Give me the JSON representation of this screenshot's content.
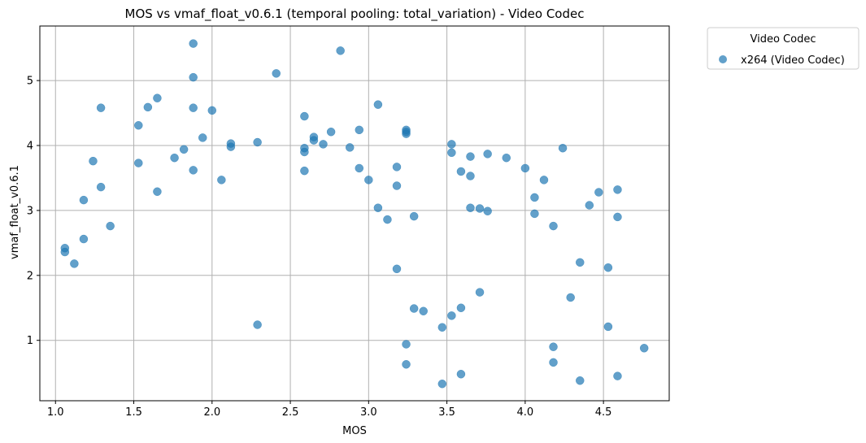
{
  "chart_data": {
    "type": "scatter",
    "title": "MOS vs vmaf_float_v0.6.1 (temporal pooling: total_variation) - Video Codec",
    "xlabel": "MOS",
    "ylabel": "vmaf_float_v0.6.1",
    "xlim": [
      0.9,
      4.92
    ],
    "ylim": [
      0.07,
      5.84
    ],
    "xticks": [
      1.0,
      1.5,
      2.0,
      2.5,
      3.0,
      3.5,
      4.0,
      4.5
    ],
    "xtick_labels": [
      "1.0",
      "1.5",
      "2.0",
      "2.5",
      "3.0",
      "3.5",
      "4.0",
      "4.5"
    ],
    "yticks": [
      1,
      2,
      3,
      4,
      5
    ],
    "ytick_labels": [
      "1",
      "2",
      "3",
      "4",
      "5"
    ],
    "grid": true,
    "legend": {
      "title": "Video Codec",
      "placement": "outside-top-right"
    },
    "series": [
      {
        "name": "x264 (Video Codec)",
        "color": "#1f77b4",
        "points": [
          [
            1.06,
            2.42
          ],
          [
            1.06,
            2.36
          ],
          [
            1.12,
            2.18
          ],
          [
            1.18,
            2.56
          ],
          [
            1.18,
            3.16
          ],
          [
            1.24,
            3.76
          ],
          [
            1.29,
            3.36
          ],
          [
            1.29,
            4.58
          ],
          [
            1.35,
            2.76
          ],
          [
            1.53,
            4.31
          ],
          [
            1.53,
            3.73
          ],
          [
            1.59,
            4.59
          ],
          [
            1.65,
            4.73
          ],
          [
            1.65,
            3.29
          ],
          [
            1.76,
            3.81
          ],
          [
            1.82,
            3.94
          ],
          [
            1.88,
            5.57
          ],
          [
            1.88,
            5.05
          ],
          [
            1.88,
            4.58
          ],
          [
            1.88,
            3.62
          ],
          [
            1.94,
            4.12
          ],
          [
            2.0,
            4.54
          ],
          [
            2.06,
            3.47
          ],
          [
            2.12,
            4.03
          ],
          [
            2.12,
            3.98
          ],
          [
            2.29,
            4.05
          ],
          [
            2.29,
            1.24
          ],
          [
            2.41,
            5.11
          ],
          [
            2.59,
            4.45
          ],
          [
            2.59,
            3.96
          ],
          [
            2.59,
            3.9
          ],
          [
            2.59,
            3.61
          ],
          [
            2.65,
            4.13
          ],
          [
            2.65,
            4.08
          ],
          [
            2.71,
            4.02
          ],
          [
            2.76,
            4.21
          ],
          [
            2.82,
            5.46
          ],
          [
            2.88,
            3.97
          ],
          [
            2.94,
            4.24
          ],
          [
            2.94,
            3.65
          ],
          [
            3.0,
            3.47
          ],
          [
            3.06,
            4.63
          ],
          [
            3.06,
            3.04
          ],
          [
            3.12,
            2.86
          ],
          [
            3.18,
            3.67
          ],
          [
            3.18,
            3.38
          ],
          [
            3.18,
            2.1
          ],
          [
            3.24,
            4.24
          ],
          [
            3.24,
            4.21
          ],
          [
            3.24,
            4.18
          ],
          [
            3.24,
            0.94
          ],
          [
            3.24,
            0.63
          ],
          [
            3.29,
            2.91
          ],
          [
            3.29,
            1.49
          ],
          [
            3.35,
            1.45
          ],
          [
            3.47,
            1.2
          ],
          [
            3.47,
            0.33
          ],
          [
            3.53,
            4.02
          ],
          [
            3.53,
            3.89
          ],
          [
            3.53,
            1.38
          ],
          [
            3.59,
            3.6
          ],
          [
            3.59,
            1.5
          ],
          [
            3.59,
            0.48
          ],
          [
            3.65,
            3.83
          ],
          [
            3.65,
            3.53
          ],
          [
            3.65,
            3.04
          ],
          [
            3.71,
            3.03
          ],
          [
            3.71,
            1.74
          ],
          [
            3.76,
            3.87
          ],
          [
            3.76,
            2.99
          ],
          [
            3.88,
            3.81
          ],
          [
            4.0,
            3.65
          ],
          [
            4.06,
            3.2
          ],
          [
            4.06,
            2.95
          ],
          [
            4.12,
            3.47
          ],
          [
            4.18,
            2.76
          ],
          [
            4.18,
            0.9
          ],
          [
            4.18,
            0.66
          ],
          [
            4.24,
            3.96
          ],
          [
            4.29,
            1.66
          ],
          [
            4.35,
            2.2
          ],
          [
            4.35,
            0.38
          ],
          [
            4.41,
            3.08
          ],
          [
            4.47,
            3.28
          ],
          [
            4.53,
            2.12
          ],
          [
            4.53,
            1.21
          ],
          [
            4.59,
            3.32
          ],
          [
            4.59,
            2.9
          ],
          [
            4.59,
            0.45
          ],
          [
            4.76,
            0.88
          ]
        ]
      }
    ]
  }
}
